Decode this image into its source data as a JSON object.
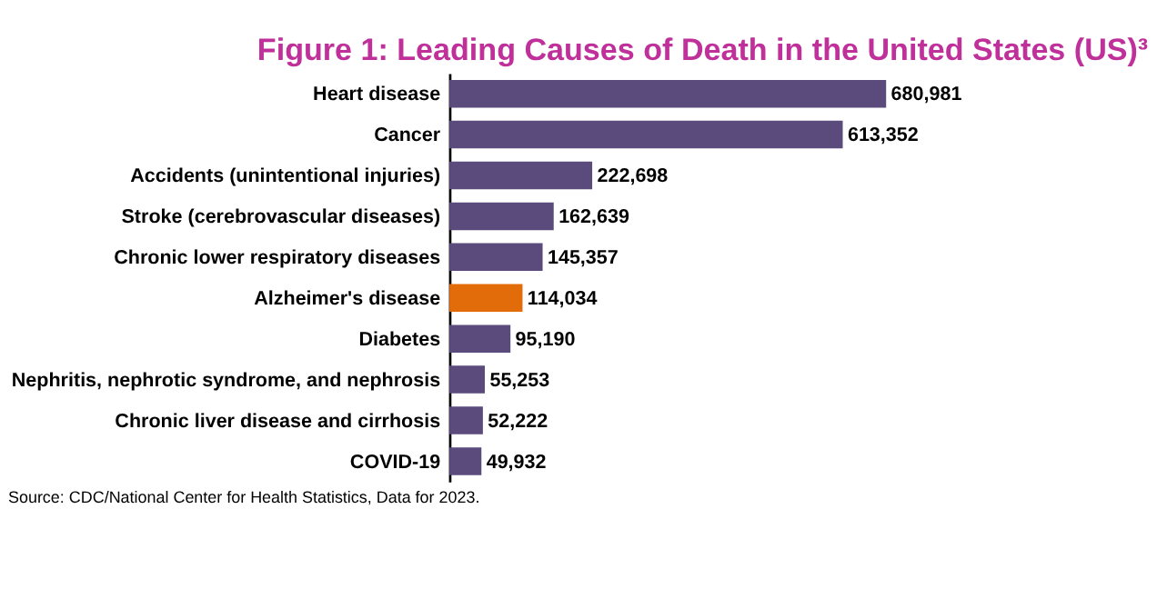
{
  "chart_data": {
    "type": "bar",
    "orientation": "horizontal",
    "title": "Figure 1: Leading Causes of Death in the United States (US)³",
    "categories": [
      "Heart disease",
      "Cancer",
      "Accidents (unintentional injuries)",
      "Stroke (cerebrovascular diseases)",
      "Chronic lower respiratory diseases",
      "Alzheimer's disease",
      "Diabetes",
      "Nephritis, nephrotic syndrome, and nephrosis",
      "Chronic liver disease and cirrhosis",
      "COVID-19"
    ],
    "values": [
      680981,
      613352,
      222698,
      162639,
      145357,
      114034,
      95190,
      55253,
      52222,
      49932
    ],
    "colors": [
      "#5b4a7c",
      "#5b4a7c",
      "#5b4a7c",
      "#5b4a7c",
      "#5b4a7c",
      "#e36c0a",
      "#5b4a7c",
      "#5b4a7c",
      "#5b4a7c",
      "#5b4a7c"
    ],
    "value_labels": [
      "680,981",
      "613,352",
      "222,698",
      "162,639",
      "145,357",
      "114,034",
      "95,190",
      "55,253",
      "52,222",
      "49,932"
    ],
    "annotations": [
      "Source: CDC/National Center for Health Statistics, Data for 2023."
    ]
  }
}
